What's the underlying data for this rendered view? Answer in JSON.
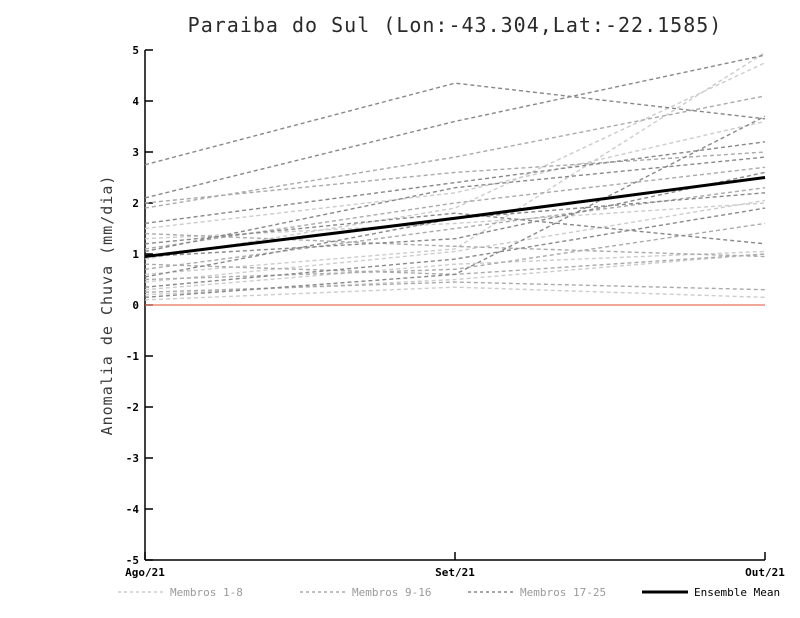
{
  "chart": {
    "title": "Paraiba do Sul (Lon:-43.304,Lat:-22.1585)",
    "ylabel": "Anomalia de Chuva (mm/dia)"
  },
  "chart_data": {
    "type": "line",
    "title": "Paraiba do Sul (Lon:-43.304,Lat:-22.1585)",
    "xlabel": "",
    "ylabel": "Anomalia de Chuva (mm/dia)",
    "x": [
      "Ago/21",
      "Set/21",
      "Out/21"
    ],
    "ylim": [
      -5,
      5
    ],
    "yticks": [
      -5,
      -4,
      -3,
      -2,
      -1,
      0,
      1,
      2,
      3,
      4,
      5
    ],
    "grid": false,
    "legend_position": "bottom",
    "zero_line": {
      "y": 0,
      "color": "#e8735a"
    },
    "groups": [
      {
        "name": "Membros 1-8",
        "color": "#cccccc",
        "style": "dashed",
        "members": [
          [
            0.2,
            0.5,
            1.0
          ],
          [
            0.45,
            1.05,
            2.05
          ],
          [
            1.3,
            1.6,
            2.0
          ],
          [
            0.1,
            0.35,
            0.15
          ],
          [
            0.6,
            1.1,
            4.95
          ],
          [
            1.5,
            2.2,
            3.6
          ],
          [
            0.3,
            0.8,
            1.05
          ],
          [
            0.9,
            1.9,
            4.75
          ]
        ]
      },
      {
        "name": "Membros 9-16",
        "color": "#aaaaaa",
        "style": "dashed",
        "members": [
          [
            2.0,
            2.6,
            3.0
          ],
          [
            1.4,
            1.15,
            0.95
          ],
          [
            0.5,
            0.7,
            1.6
          ],
          [
            0.8,
            0.6,
            1.0
          ],
          [
            1.9,
            2.9,
            4.1
          ],
          [
            0.25,
            0.45,
            0.3
          ],
          [
            1.1,
            2.0,
            2.7
          ],
          [
            0.7,
            1.5,
            2.3
          ]
        ]
      },
      {
        "name": "Membros 17-25",
        "color": "#888888",
        "style": "dashed",
        "members": [
          [
            2.75,
            4.35,
            3.65
          ],
          [
            2.1,
            3.6,
            4.9
          ],
          [
            1.6,
            2.4,
            3.2
          ],
          [
            0.95,
            1.3,
            2.6
          ],
          [
            0.35,
            0.9,
            1.9
          ],
          [
            1.2,
            1.8,
            1.2
          ],
          [
            0.15,
            0.6,
            3.7
          ],
          [
            1.05,
            2.3,
            2.9
          ],
          [
            0.55,
            1.7,
            2.2
          ]
        ]
      }
    ],
    "mean": {
      "name": "Ensemble Mean",
      "color": "#000000",
      "values": [
        0.95,
        1.7,
        2.5
      ]
    },
    "legend": [
      {
        "label": "Membros 1-8",
        "color": "#cccccc",
        "dashed": true
      },
      {
        "label": "Membros 9-16",
        "color": "#aaaaaa",
        "dashed": true
      },
      {
        "label": "Membros 17-25",
        "color": "#888888",
        "dashed": true
      },
      {
        "label": "Ensemble Mean",
        "color": "#000000",
        "dashed": false
      }
    ]
  }
}
